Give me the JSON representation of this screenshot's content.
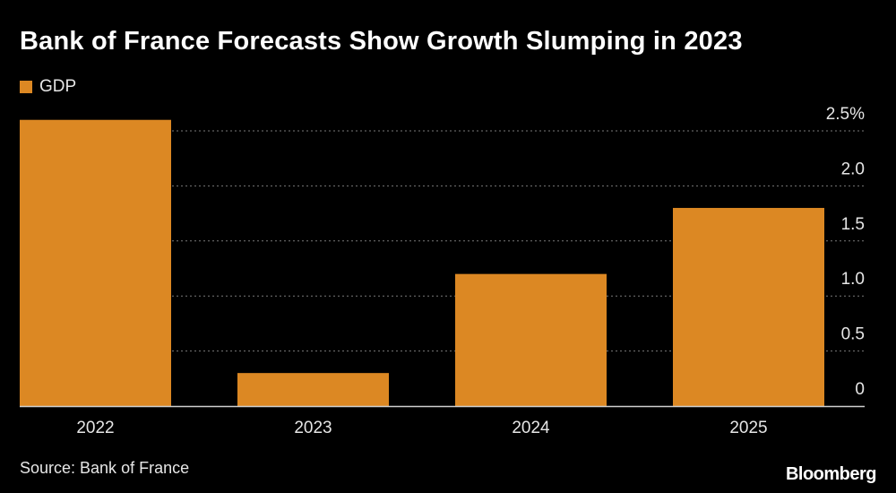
{
  "chart_data": {
    "type": "bar",
    "title": "Bank of France Forecasts Show Growth Slumping in 2023",
    "categories": [
      "2022",
      "2023",
      "2024",
      "2025"
    ],
    "series": [
      {
        "name": "GDP",
        "values": [
          2.6,
          0.3,
          1.2,
          1.8
        ],
        "color": "#dc8823"
      }
    ],
    "ylim": [
      0,
      2.5
    ],
    "yticks": [
      0,
      0.5,
      1.0,
      1.5,
      2.0,
      2.5
    ],
    "ytick_labels": [
      "0",
      "0.5",
      "1.0",
      "1.5",
      "2.0",
      "2.5%"
    ],
    "xlabel": "",
    "ylabel": "",
    "grid": true,
    "legend_position": "top-left",
    "y_axis_side": "right",
    "source": "Source: Bank of France",
    "brand": "Bloomberg"
  }
}
